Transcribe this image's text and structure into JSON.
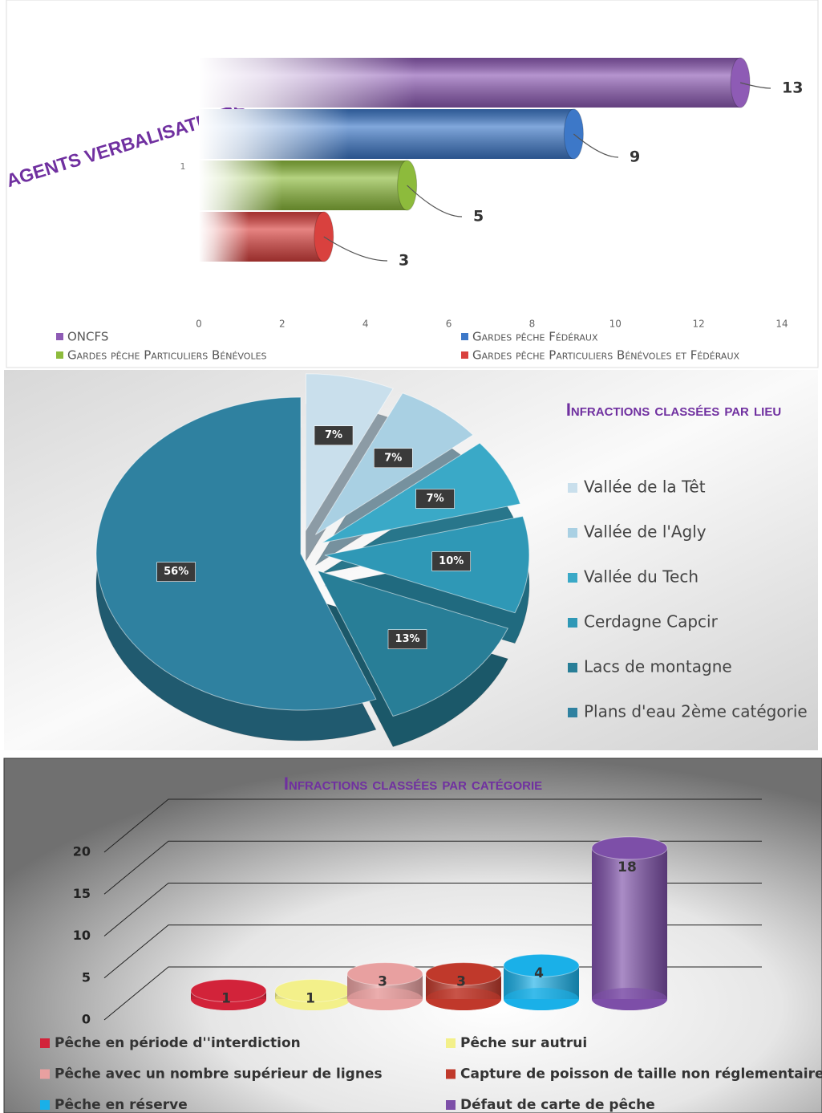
{
  "chart_data": [
    {
      "type": "hbar",
      "title": "AGENTS VERBALISATEURS",
      "categories": [
        "1"
      ],
      "series": [
        {
          "name": "ONCFS",
          "color": "#8e5bb5",
          "values": [
            13
          ]
        },
        {
          "name": "Gardes pêche Fédéraux",
          "color": "#3d78c8",
          "values": [
            9
          ]
        },
        {
          "name": "Gardes pêche Particuliers Bénévoles",
          "color": "#8dbb3c",
          "values": [
            5
          ]
        },
        {
          "name": "Gardes pêche Particuliers Bénévoles et Fédéraux",
          "color": "#d9413e",
          "values": [
            3
          ]
        }
      ],
      "xlim": [
        0,
        14
      ],
      "xticks": [
        0,
        2,
        4,
        6,
        8,
        10,
        12,
        14
      ]
    },
    {
      "type": "pie",
      "title": "Infractions classées par lieu",
      "categories": [
        "Vallée de la Têt",
        "Vallée de l'Agly",
        "Vallée du Tech",
        "Cerdagne Capcir",
        "Lacs de montagne",
        "Plans d'eau 2ème catégorie"
      ],
      "values": [
        7,
        7,
        7,
        10,
        13,
        56
      ],
      "value_labels": [
        "7%",
        "7%",
        "7%",
        "10%",
        "13%",
        "56%"
      ],
      "colors": [
        "#c9dfec",
        "#a9d0e3",
        "#3aa9c7",
        "#2f98b6",
        "#287e97",
        "#2f81a0"
      ]
    },
    {
      "type": "bar3d",
      "title": "Infractions classées par catégorie",
      "categories": [
        "Pêche en période d''interdiction",
        "Pêche sur autrui",
        "Pêche avec un nombre supérieur de lignes",
        "Capture de poisson de taille non réglementaire",
        "Pêche en réserve",
        "Défaut de carte de pêche"
      ],
      "values": [
        1,
        1,
        3,
        3,
        4,
        18
      ],
      "colors": [
        "#d2233a",
        "#f3f08a",
        "#e8a0a0",
        "#c0392b",
        "#1ab0e8",
        "#7d4fa8"
      ],
      "ylim": [
        0,
        20
      ],
      "yticks": [
        0,
        5,
        10,
        15,
        20
      ]
    }
  ]
}
